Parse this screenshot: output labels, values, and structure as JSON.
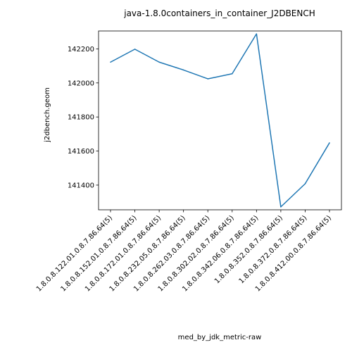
{
  "chart_data": {
    "type": "line",
    "title": "java-1.8.0containers_in_container_J2DBENCH",
    "xlabel": "med_by_jdk_metric-raw",
    "ylabel": "j2dbench.geom",
    "categories": [
      "1.8.0.8.122.01.0.8.7.86.64(5)",
      "1.8.0.8.152.01.0.8.7.86.64(5)",
      "1.8.0.8.172.01.0.8.7.86.64(5)",
      "1.8.0.8.232.05.0.8.7.86.64(5)",
      "1.8.0.8.262.03.0.8.7.86.64(5)",
      "1.8.0.8.302.02.0.8.7.86.64(5)",
      "1.8.0.8.342.06.0.8.7.86.64(5)",
      "1.8.0.8.352.0.8.7.86.64(5)",
      "1.8.0.8.372.0.8.7.86.64(5)",
      "1.8.0.8.412.00.0.8.7.86.64(5)"
    ],
    "values": [
      142122,
      142198,
      142122,
      142076,
      142024,
      142054,
      142288,
      141272,
      141408,
      141648
    ],
    "ylim": [
      141255,
      142305
    ],
    "yticks": [
      141400,
      141600,
      141800,
      142000,
      142200
    ],
    "grid": false,
    "line_color": "#1f77b4"
  }
}
